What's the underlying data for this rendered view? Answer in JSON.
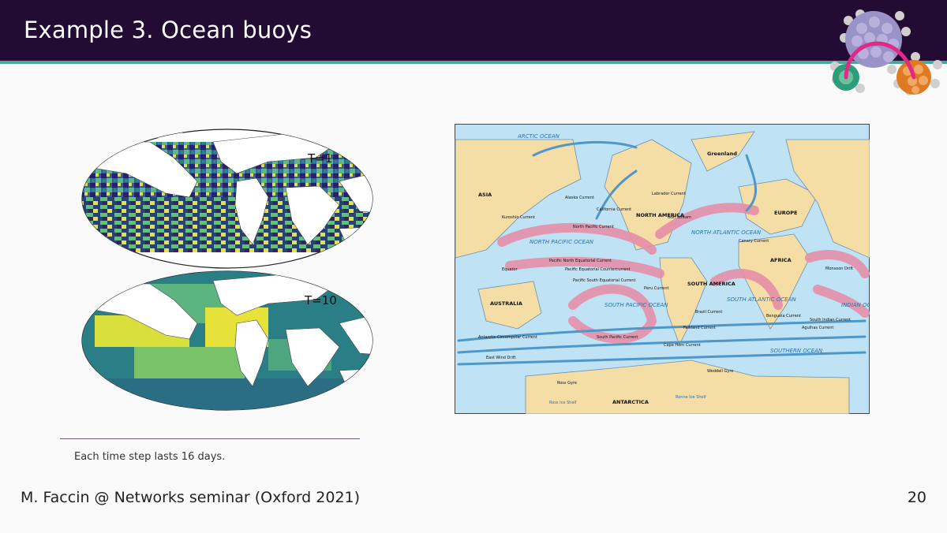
{
  "slide": {
    "title": "Example 3. Ocean buoys",
    "footnote": "Each time step lasts 16 days.",
    "footer_left": "M. Faccin @ Networks seminar (Oxford 2021)",
    "page_number": "20"
  },
  "buoy_maps": {
    "top_label": "T=1",
    "bottom_label": "T=10"
  },
  "currents_map": {
    "oceans": [
      "ARCTIC OCEAN",
      "NORTH PACIFIC OCEAN",
      "SOUTH PACIFIC OCEAN",
      "NORTH ATLANTIC OCEAN",
      "SOUTH ATLANTIC OCEAN",
      "INDIAN OCEAN",
      "SOUTHERN OCEAN"
    ],
    "continents": [
      "ASIA",
      "EUROPE",
      "AFRICA",
      "AUSTRALIA",
      "NORTH AMERICA",
      "SOUTH AMERICA",
      "ANTARCTICA",
      "Greenland"
    ],
    "currents": [
      "North Pacific Current",
      "Pacific North Equatorial Current",
      "Pacific Equatorial Countercurrent",
      "Pacific South Equatorial Current",
      "Antarctic Circumpolar Current",
      "South Pacific Current",
      "East Wind Drift",
      "Gulf Stream",
      "Labrador Current",
      "Canary Current",
      "Benguela Current",
      "Brazil Current",
      "Peru Current",
      "California Current",
      "Kuroshio Current",
      "Alaska Current",
      "Agulhas Current",
      "Weddell Gyre",
      "Ross Gyre",
      "Cape Horn Current",
      "Falkland Current",
      "South Indian Current",
      "Monsoon Drift"
    ],
    "other_labels": [
      "Equator",
      "Ross Ice Shelf",
      "Ronne Ice Shelf"
    ]
  },
  "colors": {
    "header_bg": "#230c33",
    "header_rule": "#4aa59a",
    "ocean_light": "#bfe3f5",
    "land": "#f5dda6",
    "warm_current": "#e58fa8",
    "cold_current": "#4f96c9"
  }
}
